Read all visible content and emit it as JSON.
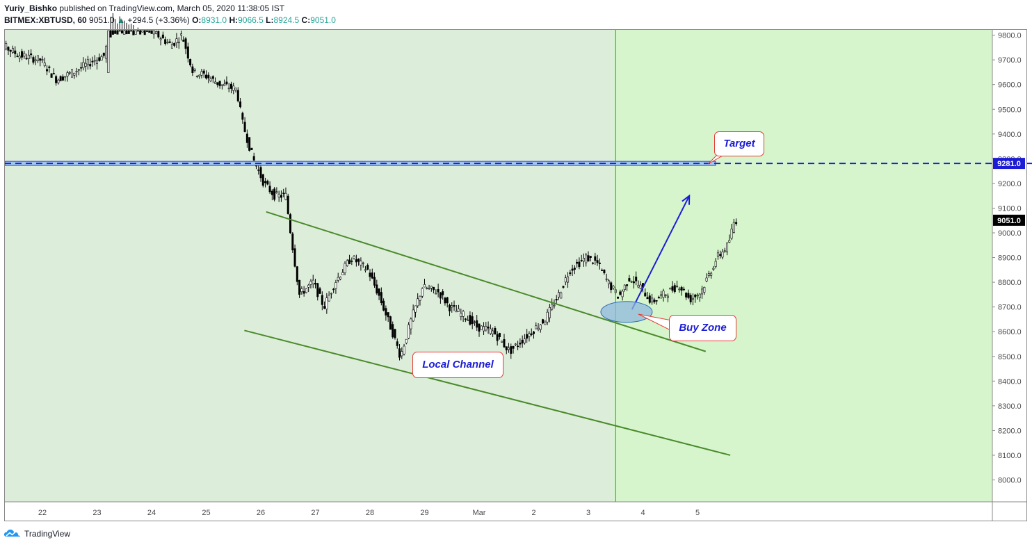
{
  "header": {
    "author": "Yuriy_Bishko",
    "published_text": "published on TradingView.com, March 05, 2020 11:38:05 IST",
    "symbol": "BITMEX:XBTUSD, 60",
    "last": "9051.0",
    "change_arrow": "▲",
    "change": "+294.5 (+3.36%)",
    "o_label": "O:",
    "o_value": "8931.0",
    "h_label": "H:",
    "h_value": "9066.5",
    "l_label": "L:",
    "l_value": "8924.5",
    "c_label": "C:",
    "c_value": "9051.0"
  },
  "footer": {
    "brand": "TradingView",
    "logo_icon": "tradingview-logo-icon"
  },
  "annotations": {
    "target": "Target",
    "buy_zone": "Buy Zone",
    "local_channel": "Local Channel"
  },
  "colors": {
    "background_left": "#dcedda",
    "background_right": "#d6f5cc",
    "channel": "#4a8a2a",
    "target_line": "#1c1cd6",
    "arrow": "#1c1cd6",
    "buy_zone_fill": "#8fb8dc",
    "bubble_border": "#e53935",
    "candle": "#000000"
  },
  "chart_data": {
    "type": "candlestick",
    "symbol": "BITMEX:XBTUSD",
    "interval": "60",
    "ylim": [
      7900,
      9850
    ],
    "y_ticks": [
      8000,
      8100,
      8200,
      8300,
      8400,
      8500,
      8600,
      8700,
      8800,
      8900,
      9000,
      9100,
      9200,
      9300,
      9400,
      9500,
      9600,
      9700,
      9800
    ],
    "y_tick_labels": [
      "8000.0",
      "8100.0",
      "8200.0",
      "8300.0",
      "8400.0",
      "8500.0",
      "8600.0",
      "8700.0",
      "8800.0",
      "8900.0",
      "9000.0",
      "9100.0",
      "9200.0",
      "9300.0",
      "9400.0",
      "9500.0",
      "9600.0",
      "9700.0",
      "9800.0"
    ],
    "x_tick_labels": [
      "22",
      "23",
      "24",
      "25",
      "26",
      "27",
      "28",
      "29",
      "Mar",
      "2",
      "3",
      "4",
      "5"
    ],
    "price_labels": {
      "target": "9281.0",
      "last": "9051.0"
    },
    "target_level": 9281,
    "price_path": [
      {
        "day": 21.0,
        "price": 9690
      },
      {
        "day": 21.3,
        "price": 9760
      },
      {
        "day": 21.6,
        "price": 9720
      },
      {
        "day": 22.0,
        "price": 9700
      },
      {
        "day": 22.3,
        "price": 9620
      },
      {
        "day": 22.6,
        "price": 9650
      },
      {
        "day": 23.0,
        "price": 9700
      },
      {
        "day": 23.2,
        "price": 9720
      },
      {
        "day": 23.25,
        "price": 9900
      },
      {
        "day": 24.15,
        "price": 9800
      },
      {
        "day": 24.4,
        "price": 9760
      },
      {
        "day": 24.6,
        "price": 9800
      },
      {
        "day": 24.8,
        "price": 9650
      },
      {
        "day": 25.0,
        "price": 9640
      },
      {
        "day": 25.3,
        "price": 9600
      },
      {
        "day": 25.6,
        "price": 9580
      },
      {
        "day": 25.7,
        "price": 9450
      },
      {
        "day": 25.9,
        "price": 9300
      },
      {
        "day": 26.1,
        "price": 9200
      },
      {
        "day": 26.3,
        "price": 9150
      },
      {
        "day": 26.5,
        "price": 9150
      },
      {
        "day": 26.6,
        "price": 8980
      },
      {
        "day": 26.75,
        "price": 8750
      },
      {
        "day": 27.0,
        "price": 8800
      },
      {
        "day": 27.2,
        "price": 8700
      },
      {
        "day": 27.4,
        "price": 8800
      },
      {
        "day": 27.7,
        "price": 8900
      },
      {
        "day": 28.0,
        "price": 8850
      },
      {
        "day": 28.2,
        "price": 8750
      },
      {
        "day": 28.45,
        "price": 8600
      },
      {
        "day": 28.6,
        "price": 8500
      },
      {
        "day": 28.8,
        "price": 8650
      },
      {
        "day": 29.0,
        "price": 8780
      },
      {
        "day": 29.3,
        "price": 8760
      },
      {
        "day": 29.5,
        "price": 8700
      },
      {
        "day": 29.8,
        "price": 8660
      },
      {
        "day": 30.0,
        "price": 8620
      },
      {
        "day": 30.3,
        "price": 8600
      },
      {
        "day": 30.6,
        "price": 8520
      },
      {
        "day": 30.8,
        "price": 8560
      },
      {
        "day": 31.0,
        "price": 8600
      },
      {
        "day": 31.25,
        "price": 8650
      },
      {
        "day": 31.5,
        "price": 8750
      },
      {
        "day": 31.7,
        "price": 8850
      },
      {
        "day": 32.0,
        "price": 8900
      },
      {
        "day": 32.2,
        "price": 8880
      },
      {
        "day": 32.4,
        "price": 8800
      },
      {
        "day": 32.6,
        "price": 8740
      },
      {
        "day": 32.8,
        "price": 8820
      },
      {
        "day": 33.0,
        "price": 8780
      },
      {
        "day": 33.2,
        "price": 8720
      },
      {
        "day": 33.5,
        "price": 8760
      },
      {
        "day": 33.7,
        "price": 8790
      },
      {
        "day": 33.9,
        "price": 8730
      },
      {
        "day": 34.1,
        "price": 8760
      },
      {
        "day": 34.4,
        "price": 8900
      },
      {
        "day": 34.6,
        "price": 8950
      },
      {
        "day": 34.72,
        "price": 9051
      }
    ],
    "annotations": [
      {
        "type": "channel_line",
        "from": {
          "day": 26.1,
          "price": 9085
        },
        "to": {
          "day": 34.15,
          "price": 8520
        }
      },
      {
        "type": "channel_line",
        "from": {
          "day": 25.7,
          "price": 8605
        },
        "to": {
          "day": 34.6,
          "price": 8100
        }
      },
      {
        "type": "horizontal_line",
        "price": 9281,
        "label": "Target"
      },
      {
        "type": "arrow",
        "from": {
          "day": 32.8,
          "price": 8690
        },
        "to": {
          "day": 33.85,
          "price": 9150
        }
      },
      {
        "type": "ellipse",
        "center": {
          "day": 32.7,
          "price": 8680
        },
        "label": "Buy Zone"
      },
      {
        "type": "vertical_line",
        "day": 32.5
      },
      {
        "type": "text_box",
        "label": "Local Channel"
      }
    ]
  }
}
